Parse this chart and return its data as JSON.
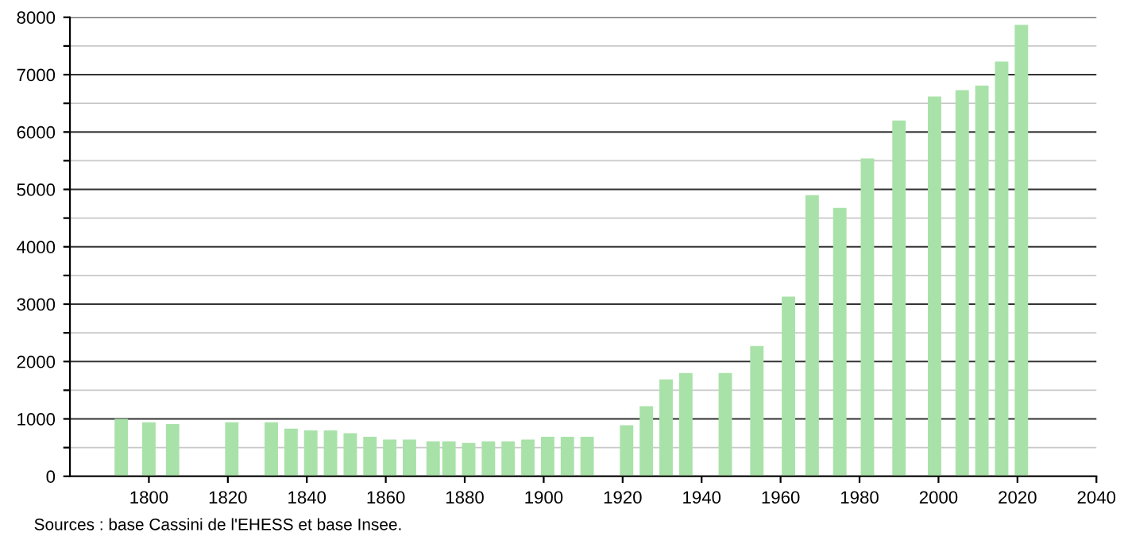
{
  "chart_data": {
    "type": "bar",
    "x": [
      1793,
      1800,
      1806,
      1821,
      1831,
      1836,
      1841,
      1846,
      1851,
      1856,
      1861,
      1866,
      1872,
      1876,
      1881,
      1886,
      1891,
      1896,
      1901,
      1906,
      1911,
      1921,
      1926,
      1931,
      1936,
      1946,
      1954,
      1962,
      1968,
      1975,
      1982,
      1990,
      1999,
      2006,
      2011,
      2016,
      2021
    ],
    "values": [
      1000,
      940,
      910,
      940,
      940,
      830,
      800,
      800,
      750,
      690,
      640,
      640,
      610,
      610,
      580,
      610,
      610,
      640,
      690,
      690,
      690,
      890,
      1220,
      1690,
      1800,
      1800,
      2270,
      3130,
      4900,
      4680,
      5540,
      6200,
      6620,
      6730,
      6810,
      7230,
      7870
    ],
    "color": "#a9e2a9",
    "xlim": [
      1780,
      2040
    ],
    "xticks": [
      1800,
      1820,
      1840,
      1860,
      1880,
      1900,
      1920,
      1940,
      1960,
      1980,
      2000,
      2020,
      2040
    ],
    "ylim": [
      0,
      8000
    ],
    "yticks": [
      0,
      {
        "value": 500,
        "label": null
      },
      1000,
      {
        "value": 1500,
        "label": null
      },
      2000,
      {
        "value": 2500,
        "label": null
      },
      3000,
      {
        "value": 3500,
        "label": null
      },
      4000,
      {
        "value": 4500,
        "label": null
      },
      5000,
      {
        "value": 5500,
        "label": null
      },
      6000,
      {
        "value": 6500,
        "label": null
      },
      7000,
      {
        "value": 7500,
        "label": null
      },
      8000
    ],
    "grid": "y",
    "annotations": [
      "Sources : base Cassini de l'EHESS et base Insee."
    ]
  }
}
